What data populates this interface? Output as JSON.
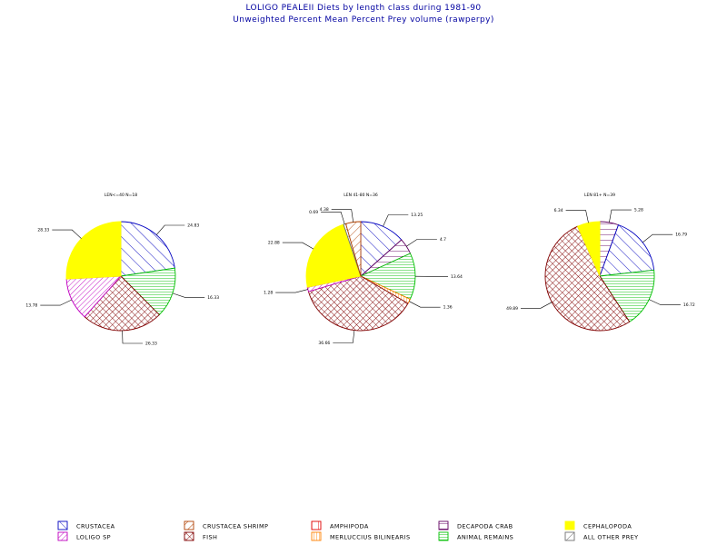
{
  "header": {
    "title": "LOLIGO PEALEII Diets by length class during 1981-90",
    "subtitle": "Unweighted Percent Mean Percent Prey volume (rawperpy)"
  },
  "colors": {
    "title": "#0000a0",
    "crustacea": "#0000c0",
    "loligo_sp": "#c000c0",
    "crustacea_shrimp": "#b04000",
    "fish": "#800000",
    "amphipoda": "#e00000",
    "merluccius_bilinearis": "#ff8000",
    "decapoda_crab": "#600060",
    "animal_remains": "#00c000",
    "cephalopoda": "#ffff00",
    "all_other_prey": "#707070"
  },
  "legend": {
    "items": [
      {
        "key": "crustacea",
        "label": "CRUSTACEA"
      },
      {
        "key": "loligo_sp",
        "label": "LOLIGO SP"
      },
      {
        "key": "crustacea_shrimp",
        "label": "CRUSTACEA SHRIMP"
      },
      {
        "key": "fish",
        "label": "FISH"
      },
      {
        "key": "amphipoda",
        "label": "AMPHIPODA"
      },
      {
        "key": "merluccius_bilinearis",
        "label": "MERLUCCIUS BILINEARIS"
      },
      {
        "key": "decapoda_crab",
        "label": "DECAPODA CRAB"
      },
      {
        "key": "animal_remains",
        "label": "ANIMAL REMAINS"
      },
      {
        "key": "cephalopoda",
        "label": "CEPHALOPODA"
      },
      {
        "key": "all_other_prey",
        "label": "ALL OTHER PREY"
      }
    ]
  },
  "chart_data": [
    {
      "type": "pie",
      "title": "LEN<=40 N=18",
      "slices": [
        {
          "key": "crustacea",
          "value": 24.83,
          "label": "24.83"
        },
        {
          "key": "animal_remains",
          "value": 16.33,
          "label": "16.33"
        },
        {
          "key": "fish",
          "value": 26.33,
          "label": "26.33"
        },
        {
          "key": "loligo_sp",
          "value": 13.78,
          "label": "13.78"
        },
        {
          "key": "cephalopoda",
          "value": 28.33,
          "label": "28.33"
        }
      ]
    },
    {
      "type": "pie",
      "title": "LEN 41-80 N=36",
      "slices": [
        {
          "key": "crustacea",
          "value": 13.25,
          "label": "13.25"
        },
        {
          "key": "decapoda_crab",
          "value": 4.7,
          "label": "4.7"
        },
        {
          "key": "animal_remains",
          "value": 13.64,
          "label": "13.64"
        },
        {
          "key": "merluccius_bilinearis",
          "value": 1.36,
          "label": "1.36"
        },
        {
          "key": "fish",
          "value": 36.66,
          "label": "36.66"
        },
        {
          "key": "loligo_sp",
          "value": 1.28,
          "label": "1.28"
        },
        {
          "key": "cephalopoda",
          "value": 22.88,
          "label": "22.88"
        },
        {
          "key": "all_other_prey",
          "value": 0.69,
          "label": "0.69"
        },
        {
          "key": "crustacea_shrimp",
          "value": 4.38,
          "label": "4.38"
        }
      ]
    },
    {
      "type": "pie",
      "title": "LEN 81+ N=39",
      "slices": [
        {
          "key": "decapoda_crab",
          "value": 5.28,
          "label": "5.28"
        },
        {
          "key": "crustacea",
          "value": 16.79,
          "label": "16.79"
        },
        {
          "key": "animal_remains",
          "value": 16.72,
          "label": "16.72"
        },
        {
          "key": "fish",
          "value": 49.89,
          "label": "49.89"
        },
        {
          "key": "cephalopoda",
          "value": 6.34,
          "label": "6.34"
        }
      ]
    }
  ]
}
